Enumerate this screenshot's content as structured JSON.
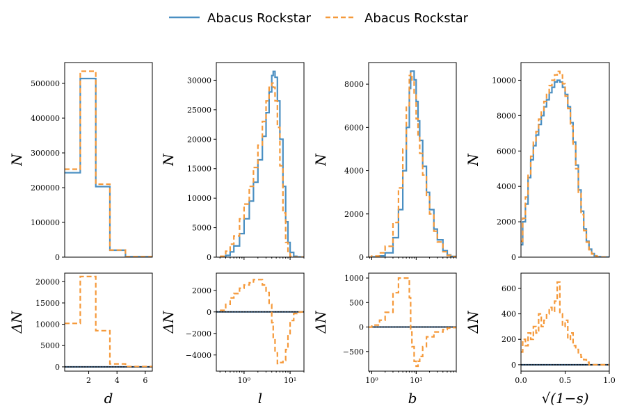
{
  "legend": {
    "entries": [
      {
        "label": "Abacus Rockstar",
        "style": "solid",
        "color": "#4a8fc2"
      },
      {
        "label": "Abacus Rockstar",
        "style": "dashed",
        "color": "#f5993a"
      }
    ]
  },
  "chart_data": [
    {
      "type": "histogram",
      "panel": "d-counts",
      "xlabel": "d",
      "ylabel": "N",
      "xscale": "linear",
      "xlim": [
        0.3,
        6.5
      ],
      "ylim": [
        0,
        560000
      ],
      "yticks": [
        0,
        100000,
        200000,
        300000,
        400000,
        500000
      ],
      "ytick_labels": [
        "0",
        "100000",
        "200000",
        "300000",
        "400000",
        "500000"
      ],
      "xticks": [],
      "xtick_labels": [],
      "series": [
        {
          "legend_index": 0,
          "edges": [
            0.3,
            1.4,
            2.5,
            3.5,
            4.6,
            6.5
          ],
          "values": [
            243000,
            514000,
            203000,
            20000,
            1000
          ]
        },
        {
          "legend_index": 1,
          "edges": [
            0.3,
            1.4,
            2.5,
            3.5,
            4.6,
            6.5
          ],
          "values": [
            253000,
            535000,
            210000,
            20500,
            1100
          ]
        }
      ]
    },
    {
      "type": "histogram",
      "panel": "l-counts",
      "xlabel": "l",
      "ylabel": "N",
      "xscale": "log",
      "xlim": [
        0.25,
        20
      ],
      "ylim": [
        0,
        33000
      ],
      "yticks": [
        0,
        5000,
        10000,
        15000,
        20000,
        25000,
        30000
      ],
      "ytick_labels": [
        "0",
        "5000",
        "10000",
        "15000",
        "20000",
        "25000",
        "30000"
      ],
      "xticks": [],
      "xtick_labels": [],
      "series": [
        {
          "legend_index": 0,
          "x": [
            0.3,
            0.4,
            0.5,
            0.6,
            0.8,
            1.0,
            1.3,
            1.6,
            2.0,
            2.5,
            3.0,
            3.5,
            4.0,
            4.3,
            4.7,
            5.3,
            6.0,
            7.0,
            8.0,
            9.0,
            10,
            12,
            14,
            17,
            20
          ],
          "values": [
            0,
            300,
            900,
            1900,
            4000,
            6500,
            9500,
            12700,
            16500,
            20500,
            24500,
            28000,
            30800,
            31500,
            30500,
            26500,
            20000,
            12000,
            6000,
            2500,
            800,
            150,
            30,
            0,
            0
          ]
        },
        {
          "legend_index": 1,
          "x": [
            0.3,
            0.4,
            0.5,
            0.6,
            0.8,
            1.0,
            1.3,
            1.6,
            2.0,
            2.5,
            3.0,
            3.5,
            4.0,
            4.3,
            4.7,
            5.3,
            6.0,
            7.0,
            8.0,
            9.0,
            10,
            12,
            14,
            17,
            20
          ],
          "values": [
            150,
            1000,
            2200,
            3600,
            6500,
            9000,
            12000,
            15200,
            19000,
            23000,
            26500,
            28800,
            29500,
            28800,
            26500,
            22000,
            15500,
            7500,
            2500,
            600,
            150,
            20,
            0,
            0,
            0
          ]
        }
      ]
    },
    {
      "type": "histogram",
      "panel": "b-counts",
      "xlabel": "b",
      "ylabel": "N",
      "xscale": "log",
      "xlim": [
        0.85,
        80
      ],
      "ylim": [
        0,
        9000
      ],
      "yticks": [
        0,
        2000,
        4000,
        6000,
        8000
      ],
      "ytick_labels": [
        "0",
        "2000",
        "4000",
        "6000",
        "8000"
      ],
      "xticks": [],
      "xtick_labels": [],
      "series": [
        {
          "legend_index": 0,
          "x": [
            0.85,
            1.0,
            1.5,
            2.0,
            3.0,
            4.0,
            5.0,
            6.0,
            7.0,
            7.5,
            8.0,
            9.0,
            10,
            11,
            12,
            14,
            17,
            20,
            25,
            30,
            40,
            50,
            60,
            80
          ],
          "values": [
            0,
            10,
            60,
            200,
            900,
            2200,
            4000,
            6000,
            7800,
            8600,
            8600,
            8200,
            7200,
            6300,
            5400,
            4200,
            3000,
            2200,
            1300,
            800,
            300,
            100,
            40,
            10
          ]
        },
        {
          "legend_index": 1,
          "x": [
            0.85,
            1.0,
            1.5,
            2.0,
            3.0,
            4.0,
            5.0,
            6.0,
            7.0,
            7.5,
            8.0,
            9.0,
            10,
            11,
            12,
            14,
            17,
            20,
            25,
            30,
            40,
            50,
            60,
            80
          ],
          "values": [
            0,
            50,
            200,
            500,
            1600,
            3200,
            5000,
            7000,
            8400,
            8500,
            8200,
            7500,
            6400,
            5600,
            4800,
            3800,
            2800,
            2000,
            1200,
            700,
            250,
            80,
            30,
            8
          ]
        }
      ]
    },
    {
      "type": "histogram",
      "panel": "s-counts",
      "xlabel": "√(1−s)",
      "ylabel": "N",
      "xscale": "linear",
      "xlim": [
        0,
        1
      ],
      "ylim": [
        0,
        11000
      ],
      "yticks": [
        0,
        2000,
        4000,
        6000,
        8000,
        10000
      ],
      "ytick_labels": [
        "0",
        "2000",
        "4000",
        "6000",
        "8000",
        "10000"
      ],
      "xticks": [],
      "xtick_labels": [],
      "series": [
        {
          "legend_index": 0,
          "x": [
            0.0,
            0.02,
            0.05,
            0.08,
            0.11,
            0.14,
            0.17,
            0.2,
            0.23,
            0.26,
            0.29,
            0.32,
            0.35,
            0.38,
            0.41,
            0.44,
            0.47,
            0.5,
            0.53,
            0.56,
            0.59,
            0.62,
            0.65,
            0.68,
            0.71,
            0.74,
            0.77,
            0.8,
            0.83,
            0.86,
            0.9,
            0.95,
            1.0
          ],
          "values": [
            700,
            2000,
            3000,
            4500,
            5500,
            6300,
            6900,
            7500,
            8000,
            8500,
            8900,
            9300,
            9600,
            9900,
            10000,
            9900,
            9600,
            9200,
            8500,
            7600,
            6500,
            5200,
            3800,
            2600,
            1600,
            900,
            450,
            200,
            80,
            20,
            0,
            0,
            0
          ]
        },
        {
          "legend_index": 1,
          "x": [
            0.0,
            0.02,
            0.05,
            0.08,
            0.11,
            0.14,
            0.17,
            0.2,
            0.23,
            0.26,
            0.29,
            0.32,
            0.35,
            0.38,
            0.41,
            0.44,
            0.47,
            0.5,
            0.53,
            0.56,
            0.59,
            0.62,
            0.65,
            0.68,
            0.71,
            0.74,
            0.77,
            0.8,
            0.83,
            0.86,
            0.9,
            0.95,
            1.0
          ],
          "values": [
            900,
            2200,
            3400,
            4700,
            5700,
            6500,
            7100,
            7800,
            8200,
            8800,
            9200,
            9700,
            10000,
            10300,
            10500,
            10300,
            9800,
            9100,
            8400,
            7400,
            6300,
            5000,
            3600,
            2400,
            1500,
            850,
            420,
            180,
            70,
            15,
            0,
            0,
            0
          ]
        }
      ]
    },
    {
      "type": "histogram",
      "panel": "d-difference",
      "xlabel": "d",
      "ylabel": "ΔN",
      "xscale": "linear",
      "xlim": [
        0.3,
        6.5
      ],
      "ylim": [
        -1000,
        22000
      ],
      "yticks": [
        0,
        5000,
        10000,
        15000,
        20000
      ],
      "ytick_labels": [
        "0",
        "5000",
        "10000",
        "15000",
        "20000"
      ],
      "xticks": [
        2,
        4,
        6
      ],
      "xtick_labels": [
        "2",
        "4",
        "6"
      ],
      "zero_line": true,
      "series": [
        {
          "legend_index": 1,
          "edges": [
            0.3,
            1.4,
            2.5,
            3.5,
            4.6,
            6.5
          ],
          "values": [
            10200,
            21200,
            8500,
            700,
            100
          ]
        }
      ]
    },
    {
      "type": "histogram",
      "panel": "l-difference",
      "xlabel": "l",
      "ylabel": "ΔN",
      "xscale": "log",
      "xlim": [
        0.25,
        20
      ],
      "ylim": [
        -5500,
        3600
      ],
      "yticks": [
        -4000,
        -2000,
        0,
        2000
      ],
      "ytick_labels": [
        "−4000",
        "−2000",
        "0",
        "2000"
      ],
      "xticks": [
        1,
        10
      ],
      "xtick_labels": [
        "10⁰",
        "10¹"
      ],
      "zero_line": true,
      "series": [
        {
          "legend_index": 1,
          "x": [
            0.3,
            0.4,
            0.5,
            0.6,
            0.8,
            1.0,
            1.3,
            1.6,
            2.0,
            2.5,
            3.0,
            3.5,
            4.0,
            4.3,
            4.7,
            5.3,
            6.0,
            7.0,
            8.0,
            9.0,
            10,
            12,
            14,
            17,
            20
          ],
          "values": [
            150,
            700,
            1300,
            1700,
            2200,
            2500,
            2700,
            3000,
            3000,
            2500,
            1800,
            700,
            -1000,
            -2500,
            -3800,
            -4800,
            -4700,
            -4500,
            -3500,
            -2100,
            -800,
            -150,
            -30,
            0,
            0
          ]
        }
      ]
    },
    {
      "type": "histogram",
      "panel": "b-difference",
      "xlabel": "b",
      "ylabel": "ΔN",
      "xscale": "log",
      "xlim": [
        0.85,
        80
      ],
      "ylim": [
        -900,
        1100
      ],
      "yticks": [
        -500,
        0,
        500,
        1000
      ],
      "ytick_labels": [
        "−500",
        "0",
        "500",
        "1000"
      ],
      "xticks": [
        1,
        10
      ],
      "xtick_labels": [
        "10⁰",
        "10¹"
      ],
      "zero_line": true,
      "series": [
        {
          "legend_index": 1,
          "x": [
            0.85,
            1.0,
            1.5,
            2.0,
            3.0,
            4.0,
            5.0,
            6.0,
            7.0,
            7.5,
            8.0,
            9.0,
            10,
            11,
            12,
            14,
            17,
            20,
            25,
            30,
            40,
            50,
            60,
            80
          ],
          "values": [
            0,
            40,
            140,
            300,
            700,
            1000,
            1000,
            1000,
            600,
            -100,
            -400,
            -700,
            -800,
            -700,
            -600,
            -400,
            -200,
            -200,
            -100,
            -100,
            -50,
            -20,
            -10,
            -2
          ]
        }
      ]
    },
    {
      "type": "histogram",
      "panel": "s-difference",
      "xlabel": "√(1−s)",
      "ylabel": "ΔN",
      "xscale": "linear",
      "xlim": [
        0,
        1
      ],
      "ylim": [
        -50,
        720
      ],
      "yticks": [
        0,
        200,
        400,
        600
      ],
      "ytick_labels": [
        "0",
        "200",
        "400",
        "600"
      ],
      "xticks": [
        0,
        0.5,
        1
      ],
      "xtick_labels": [
        "0.0",
        "0.5",
        "1.0"
      ],
      "zero_line": true,
      "series": [
        {
          "legend_index": 1,
          "x": [
            0.0,
            0.02,
            0.05,
            0.08,
            0.11,
            0.14,
            0.17,
            0.2,
            0.23,
            0.26,
            0.29,
            0.32,
            0.35,
            0.38,
            0.41,
            0.44,
            0.47,
            0.5,
            0.53,
            0.56,
            0.59,
            0.62,
            0.65,
            0.68,
            0.71,
            0.74,
            0.77,
            0.8,
            0.83,
            0.86,
            0.9,
            0.95,
            1.0
          ],
          "values": [
            100,
            200,
            150,
            250,
            200,
            300,
            250,
            400,
            300,
            350,
            400,
            450,
            420,
            500,
            650,
            400,
            300,
            350,
            200,
            250,
            150,
            120,
            80,
            60,
            40,
            20,
            0,
            0,
            0,
            0,
            0,
            0,
            0
          ]
        }
      ]
    }
  ]
}
